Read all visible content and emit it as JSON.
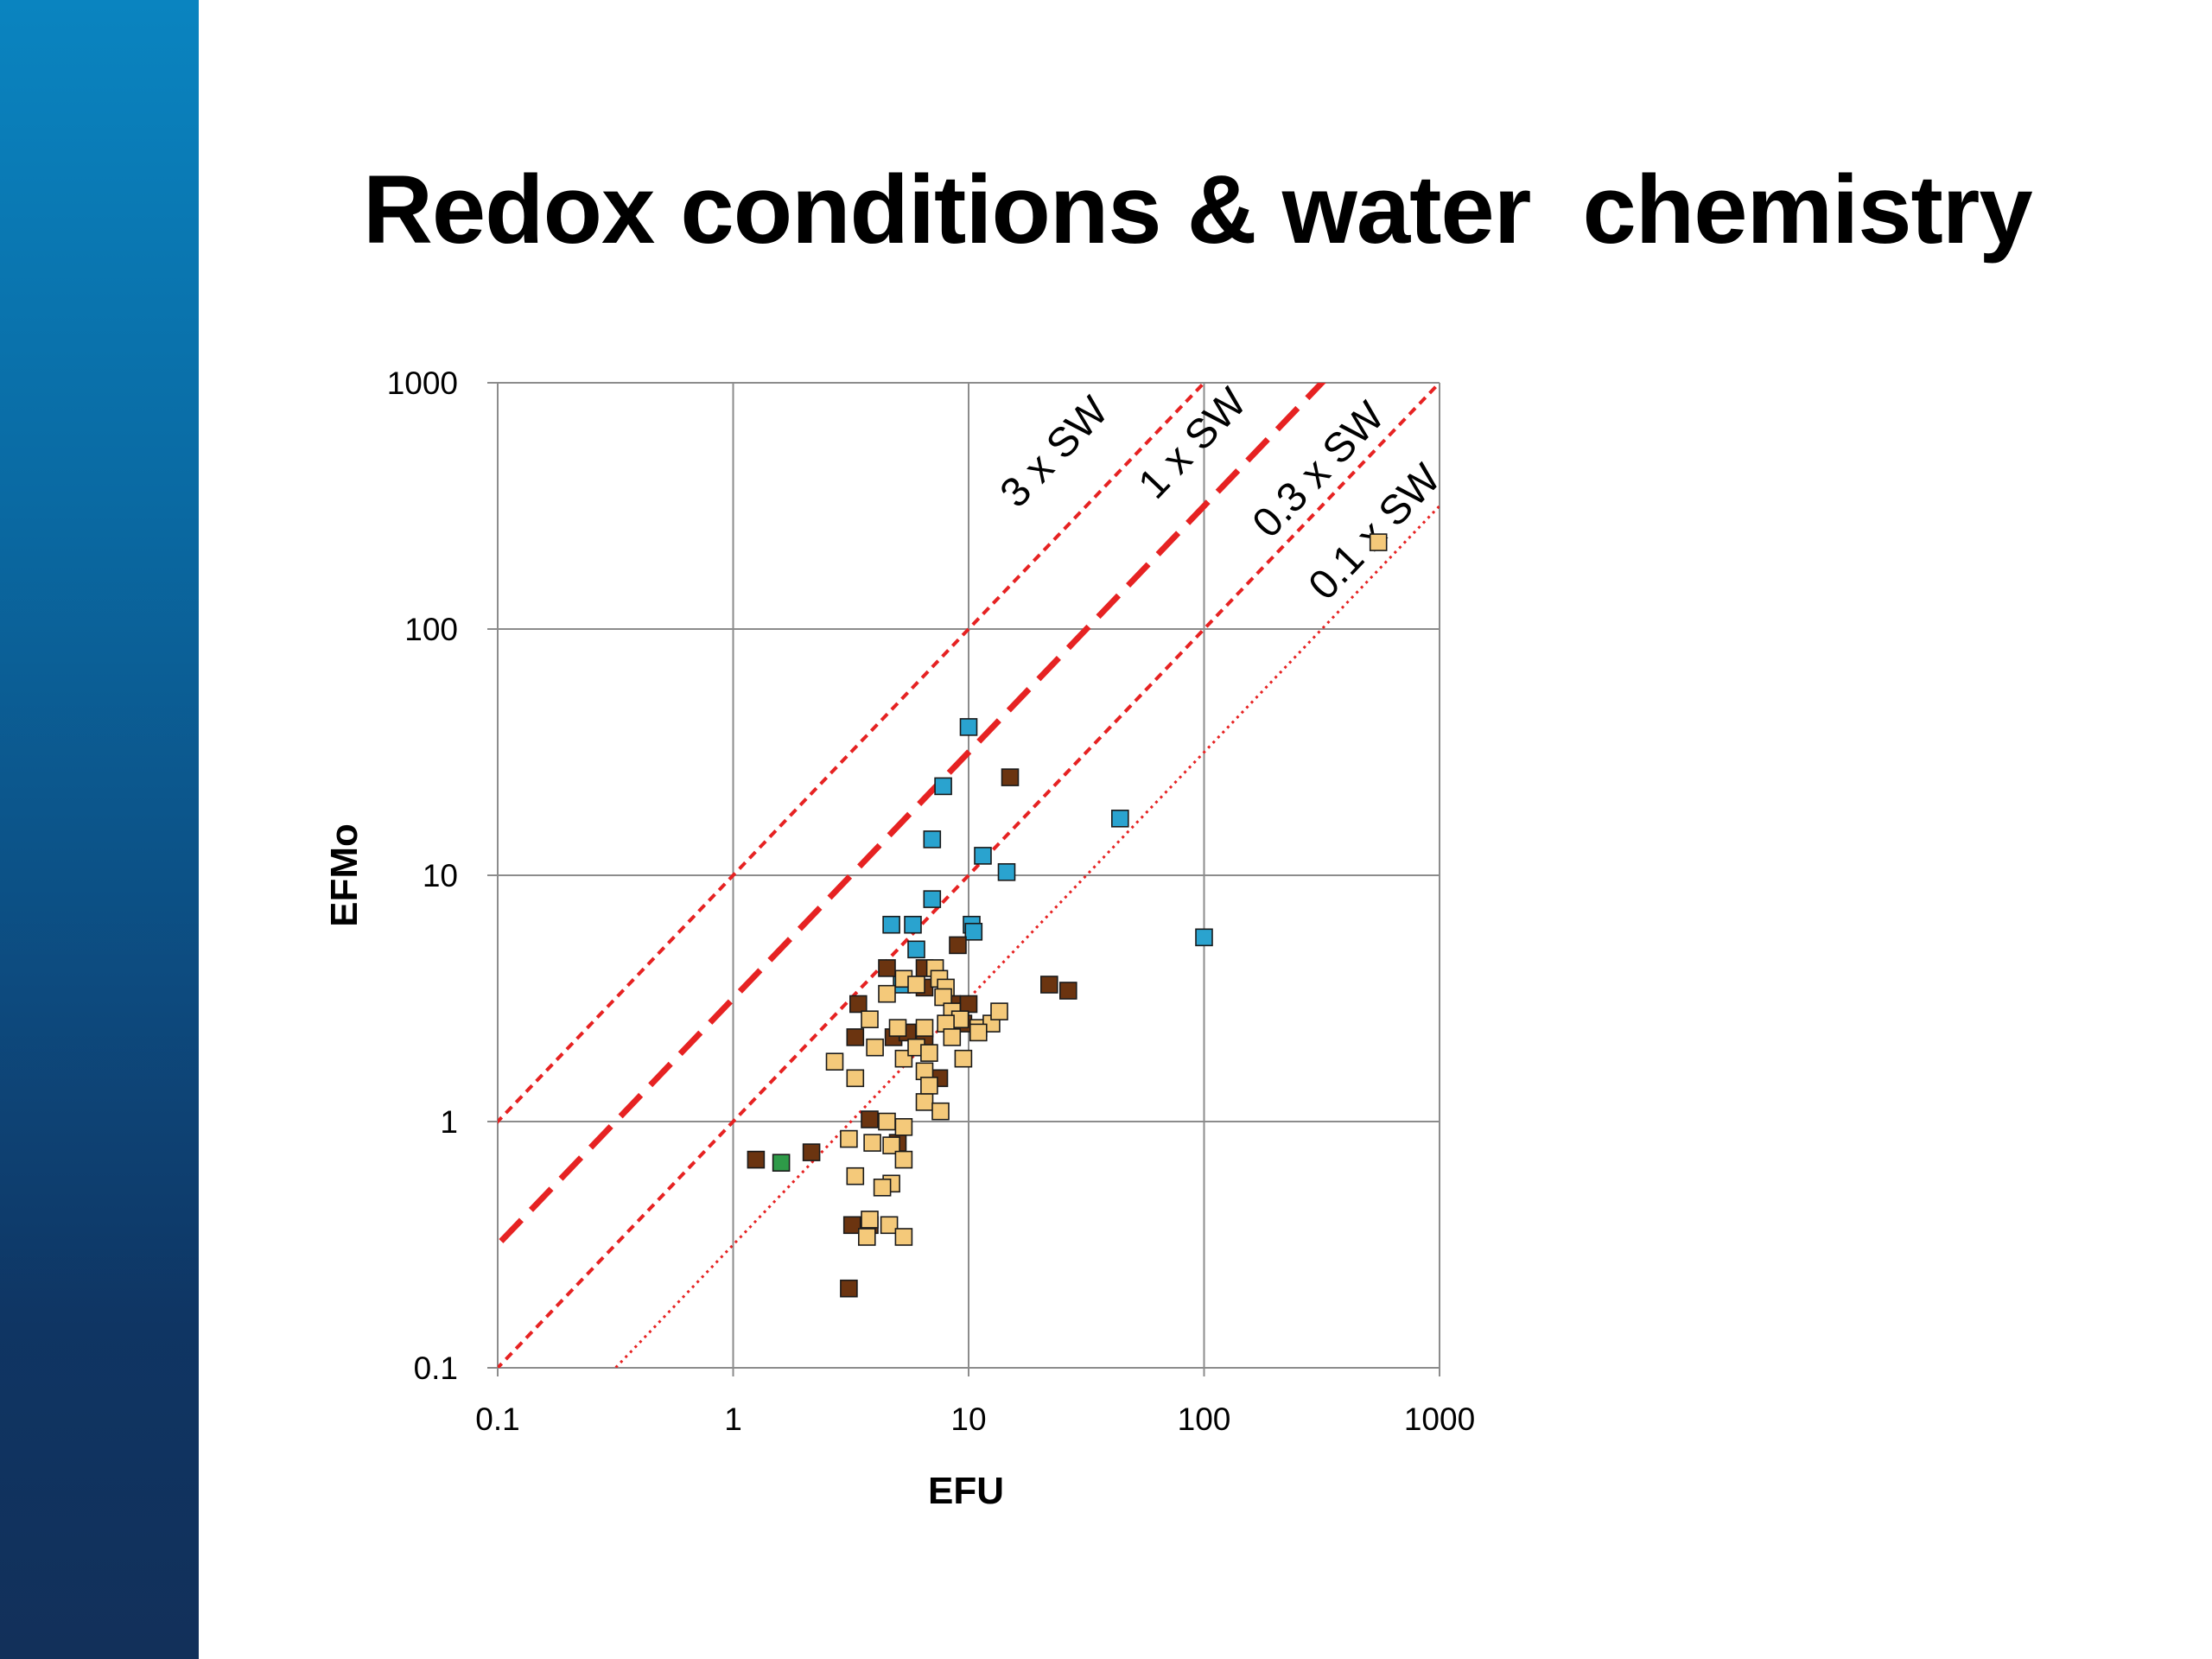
{
  "slide": {
    "title": "Redox conditions & water  chemistry"
  },
  "chart_data": {
    "type": "scatter",
    "xlabel": "EFU",
    "ylabel": "EFMo",
    "xscale": "log",
    "yscale": "log",
    "xlim": [
      0.1,
      1000
    ],
    "ylim": [
      0.1,
      1000
    ],
    "grid": true,
    "x_ticks": [
      "0.1",
      "1",
      "10",
      "100",
      "1000"
    ],
    "y_ticks": [
      "0.1",
      "1",
      "10",
      "100",
      "1000"
    ],
    "colors": {
      "blue": "#2aa3cf",
      "dark_brown": "#6b3410",
      "light_tan": "#f4c97a",
      "green": "#2e9a48",
      "red_line": "#e62222"
    },
    "reference_lines": [
      {
        "label": "3 x SW",
        "ratio": 10,
        "style": "short-dash"
      },
      {
        "label": "1 x SW",
        "ratio": 3.16,
        "style": "long-dash"
      },
      {
        "label": "0.3 x SW",
        "ratio": 1,
        "style": "short-dash"
      },
      {
        "label": "0.1 x SW",
        "ratio": 0.316,
        "style": "dotted"
      }
    ],
    "series": [
      {
        "color": "blue",
        "points": [
          [
            10,
            40
          ],
          [
            7.8,
            23
          ],
          [
            7,
            14
          ],
          [
            11.5,
            12
          ],
          [
            14.5,
            10.3
          ],
          [
            7,
            8
          ],
          [
            44,
            17
          ],
          [
            4.7,
            6.3
          ],
          [
            5.8,
            6.3
          ],
          [
            10.3,
            6.3
          ],
          [
            10.5,
            5.9
          ],
          [
            6,
            5
          ],
          [
            5.2,
            3.6
          ],
          [
            100,
            5.6
          ]
        ]
      },
      {
        "color": "dark_brown",
        "points": [
          [
            15,
            25
          ],
          [
            9,
            5.2
          ],
          [
            4.5,
            4.2
          ],
          [
            6.5,
            4.2
          ],
          [
            3.4,
            3
          ],
          [
            22,
            3.6
          ],
          [
            26.5,
            3.4
          ],
          [
            6.5,
            3.5
          ],
          [
            8.5,
            3
          ],
          [
            10,
            3
          ],
          [
            4.8,
            2.2
          ],
          [
            5.5,
            2.3
          ],
          [
            9.5,
            2.5
          ],
          [
            3.3,
            2.2
          ],
          [
            6.5,
            2.1
          ],
          [
            7.5,
            1.5
          ],
          [
            3.8,
            1.02
          ],
          [
            5,
            0.82
          ],
          [
            1.25,
            0.7
          ],
          [
            2.15,
            0.75
          ],
          [
            3.2,
            0.38
          ],
          [
            3.8,
            0.38
          ],
          [
            3.1,
            0.21
          ]
        ]
      },
      {
        "color": "light_tan",
        "points": [
          [
            4.5,
            3.3
          ],
          [
            5.3,
            3.8
          ],
          [
            6,
            3.6
          ],
          [
            7.2,
            4.2
          ],
          [
            7.5,
            3.8
          ],
          [
            8,
            3.5
          ],
          [
            7.8,
            3.2
          ],
          [
            8.5,
            2.8
          ],
          [
            9.2,
            2.6
          ],
          [
            3.8,
            2.6
          ],
          [
            5,
            2.4
          ],
          [
            6.5,
            2.4
          ],
          [
            8,
            2.5
          ],
          [
            8.5,
            2.2
          ],
          [
            11,
            2.4
          ],
          [
            12.5,
            2.5
          ],
          [
            13.5,
            2.8
          ],
          [
            11,
            2.3
          ],
          [
            5.3,
            1.8
          ],
          [
            6,
            2
          ],
          [
            6.8,
            1.9
          ],
          [
            9.5,
            1.8
          ],
          [
            6.5,
            1.6
          ],
          [
            2.7,
            1.75
          ],
          [
            3.3,
            1.5
          ],
          [
            6.5,
            1.2
          ],
          [
            6.8,
            1.4
          ],
          [
            7.6,
            1.1
          ],
          [
            4,
            2
          ],
          [
            4.5,
            1
          ],
          [
            5.3,
            0.95
          ],
          [
            3.1,
            0.85
          ],
          [
            3.9,
            0.82
          ],
          [
            4.7,
            0.8
          ],
          [
            5.3,
            0.7
          ],
          [
            3.3,
            0.6
          ],
          [
            4.7,
            0.56
          ],
          [
            4.3,
            0.54
          ],
          [
            3.8,
            0.4
          ],
          [
            4.6,
            0.38
          ],
          [
            3.7,
            0.34
          ],
          [
            5.3,
            0.34
          ],
          [
            550,
            225
          ]
        ]
      },
      {
        "color": "green",
        "points": [
          [
            1.6,
            0.68
          ]
        ]
      }
    ]
  }
}
